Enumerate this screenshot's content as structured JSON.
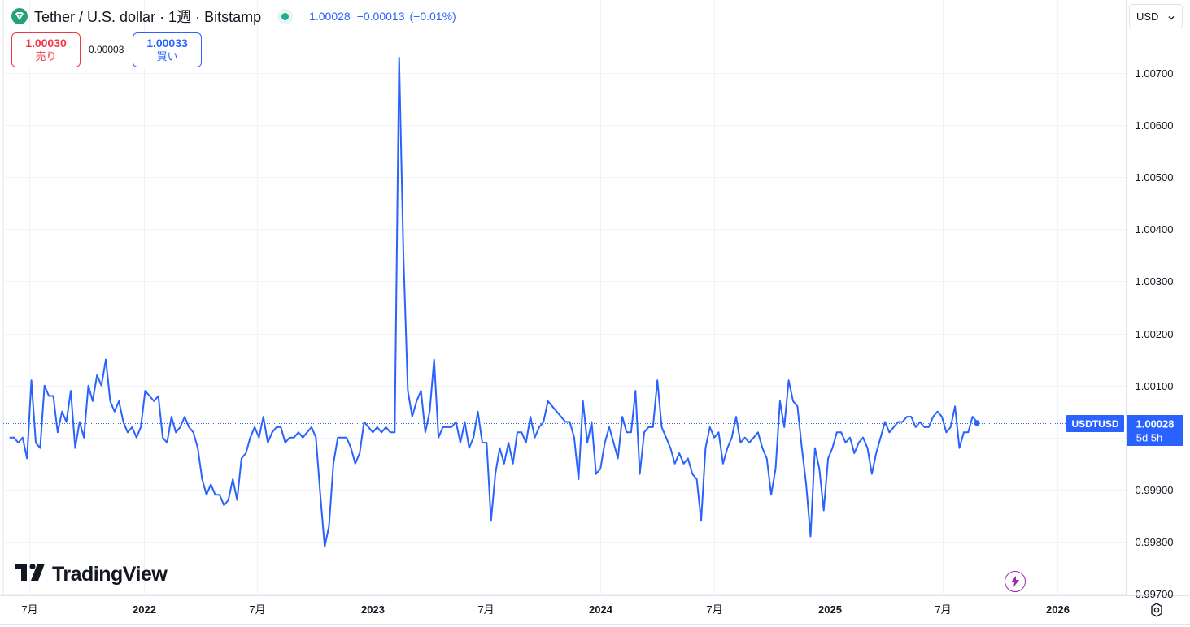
{
  "header": {
    "title": "Tether / U.S. dollar · 1週 · Bitstamp",
    "last": "1.00028",
    "change": "−0.00013",
    "change_pct": "(−0.01%)"
  },
  "trade": {
    "sell_price": "1.00030",
    "sell_label": "売り",
    "spread": "0.00003",
    "buy_price": "1.00033",
    "buy_label": "買い"
  },
  "currency": {
    "label": "USD"
  },
  "logo": {
    "text": "TradingView"
  },
  "colors": {
    "line": "#2962ff",
    "up": "#26a69a",
    "down": "#f23645",
    "tether": "#26a17b",
    "grid": "#f0f3fa",
    "alert": "#9c27b0"
  },
  "icons": [
    "tether-logo-icon",
    "market-status-icon",
    "chevron-down-icon",
    "tradingview-logo-icon",
    "lightning-icon",
    "settings-icon"
  ],
  "chart_data": {
    "type": "line",
    "title": "Tether / U.S. dollar · 1週 · Bitstamp",
    "xlabel": "",
    "ylabel": "",
    "grid": true,
    "x_tick_labels": [
      "7月",
      "2022",
      "7月",
      "2023",
      "7月",
      "2024",
      "7月",
      "2025",
      "7月",
      "2026"
    ],
    "y_tick_labels": [
      "0.99700",
      "0.99800",
      "0.99900",
      "1.00000",
      "1.00100",
      "1.00200",
      "1.00300",
      "1.00400",
      "1.00500",
      "1.00600",
      "1.00700"
    ],
    "ylim": [
      0.997,
      1.0074
    ],
    "xlim": [
      "2021-05-21",
      "2026-04-20"
    ],
    "series": [
      {
        "name": "USDTUSD",
        "x_start": "2021-05-31",
        "interval": "1週",
        "values": [
          1.0,
          1.0,
          0.9999,
          1.0,
          0.9996,
          1.0011,
          0.9999,
          0.9998,
          1.001,
          1.0008,
          1.0008,
          1.0001,
          1.0005,
          1.0003,
          1.0009,
          0.9998,
          1.0003,
          1.0,
          1.001,
          1.0007,
          1.0012,
          1.001,
          1.0015,
          1.0007,
          1.0005,
          1.0007,
          1.0003,
          1.0001,
          1.0002,
          1.0,
          1.0002,
          1.0009,
          1.0008,
          1.0007,
          1.0008,
          1.0,
          0.9999,
          1.0004,
          1.0001,
          1.0002,
          1.0004,
          1.0002,
          1.0001,
          0.9998,
          0.9992,
          0.9989,
          0.9991,
          0.9989,
          0.9989,
          0.9987,
          0.9988,
          0.9992,
          0.9988,
          0.9996,
          0.9997,
          1.0,
          1.0002,
          1.0,
          1.0004,
          0.9999,
          1.0001,
          1.0002,
          1.0002,
          0.9999,
          1.0,
          1.0,
          1.0001,
          1.0,
          1.0001,
          1.0002,
          1.0,
          0.9989,
          0.9979,
          0.9983,
          0.9995,
          1.0,
          1.0,
          1.0,
          0.9998,
          0.9995,
          0.9997,
          1.0003,
          1.0002,
          1.0001,
          1.0002,
          1.0001,
          1.0002,
          1.0001,
          1.0001,
          1.0073,
          1.0035,
          1.0009,
          1.0004,
          1.0007,
          1.0009,
          1.0001,
          1.0005,
          1.0015,
          1.0,
          1.0002,
          1.0002,
          1.0002,
          1.0003,
          0.9999,
          1.0003,
          0.9998,
          1.0,
          1.0005,
          0.9999,
          0.9999,
          0.9984,
          0.9993,
          0.9998,
          0.9995,
          0.9999,
          0.9995,
          1.0001,
          1.0001,
          0.9999,
          1.0004,
          1.0,
          1.0002,
          1.0003,
          1.0007,
          1.0006,
          1.0005,
          1.0004,
          1.0003,
          1.0003,
          1.0,
          0.9992,
          1.0007,
          0.9999,
          1.0003,
          0.9993,
          0.9994,
          0.9999,
          1.0002,
          0.9999,
          0.9996,
          1.0004,
          1.0001,
          1.0001,
          1.0009,
          0.9993,
          1.0001,
          1.0002,
          1.0002,
          1.0011,
          1.0002,
          1.0,
          0.9998,
          0.9995,
          0.9997,
          0.9995,
          0.9996,
          0.9993,
          0.9992,
          0.9984,
          0.9998,
          1.0002,
          1.0,
          1.0001,
          0.9995,
          0.9998,
          1.0,
          1.0004,
          0.9999,
          1.0,
          0.9999,
          1.0,
          1.0001,
          0.9998,
          0.9996,
          0.9989,
          0.9994,
          1.0007,
          1.0002,
          1.0011,
          1.0007,
          1.0006,
          0.9998,
          0.9991,
          0.9981,
          0.9998,
          0.9994,
          0.9986,
          0.9996,
          0.9998,
          1.0001,
          1.0001,
          0.9999,
          1.0,
          0.9997,
          0.9999,
          1.0,
          0.9998,
          0.9993,
          0.9997,
          1.0,
          1.0003,
          1.0001,
          1.0002,
          1.0003,
          1.0003,
          1.0004,
          1.0004,
          1.0002,
          1.0003,
          1.0002,
          1.0002,
          1.0004,
          1.0005,
          1.0004,
          1.0001,
          1.0002,
          1.0006,
          0.9998,
          1.0001,
          1.0001,
          1.0004,
          1.0003
        ]
      }
    ],
    "last_value_label": "1.00028",
    "last_value_countdown": "5d 5h",
    "symbol_tag": "USDTUSD"
  }
}
